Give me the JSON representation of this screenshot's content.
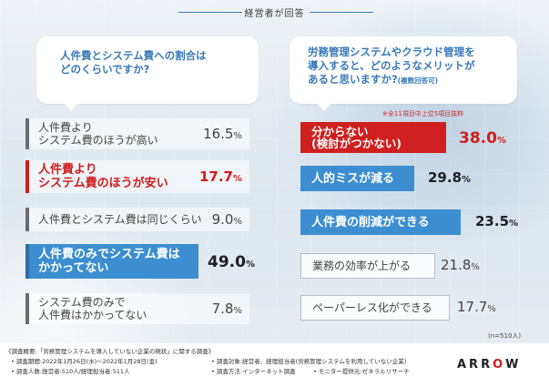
{
  "header": {
    "title": "経営者が回答"
  },
  "question1": {
    "line1": "人件費とシステム費への割合は",
    "line2": "どのくらいですか?"
  },
  "question2": {
    "line1": "労務管理システムやクラウド管理を",
    "line2": "導入すると、どのようなメリットが",
    "line3": "あると思いますか?",
    "note": "(複数回答可)"
  },
  "question2_subnote": "※全11項目中上位5項目抜粋",
  "left_answers": [
    {
      "line1": "人件費より",
      "line2": "システム費のほうが高い",
      "value": "16.5",
      "unit": "%",
      "style": "plain"
    },
    {
      "line1": "人件費より",
      "line2": "システム費のほうが安い",
      "value": "17.7",
      "unit": "%",
      "style": "red"
    },
    {
      "line1": "人件費とシステム費は同じくらい",
      "line2": "",
      "value": "9.0",
      "unit": "%",
      "style": "plain"
    },
    {
      "line1": "人件費のみでシステム費は",
      "line2": "かかってない",
      "value": "49.0",
      "unit": "%",
      "style": "blue"
    },
    {
      "line1": "システム費のみで",
      "line2": "人件費はかかってない",
      "value": "7.8",
      "unit": "%",
      "style": "plain"
    }
  ],
  "right_answers": [
    {
      "line1": "分からない",
      "line2": "(検討がつかない)",
      "value": "38.0",
      "unit": "%",
      "style": "red"
    },
    {
      "line1": "人的ミスが減る",
      "line2": "",
      "value": "29.8",
      "unit": "%",
      "style": "blue"
    },
    {
      "line1": "人件費の削減ができる",
      "line2": "",
      "value": "23.5",
      "unit": "%",
      "style": "blue"
    },
    {
      "line1": "業務の効率が上がる",
      "line2": "",
      "value": "21.8",
      "unit": "%",
      "style": "gray"
    },
    {
      "line1": "ペーパーレス化ができる",
      "line2": "",
      "value": "17.7",
      "unit": "%",
      "style": "gray"
    }
  ],
  "sample_note": "(n=510人)",
  "footer": {
    "overview": "《調査概要:「労務管理システムを導入していない企業の現状」に関する調査》",
    "period": "• 調査期間:2022年1月26日(水)〜2022年1月28日(金)",
    "target": "• 調査対象:経営者、経理担当者(労務管理システムを利用していない企業)",
    "people": "• 調査人数:経営者:510人/経理担当者:511人",
    "method": "• 調査方法:インターネット調査",
    "provider": "• モニター提供元:ゼネラルリサーチ"
  },
  "logo": {
    "text_a": "ARR",
    "mark": "O",
    "text_b": "W"
  },
  "colors": {
    "accent_blue": "#3d8ed0",
    "accent_red": "#cf1f1f",
    "heading_blue": "#3a79b8"
  }
}
